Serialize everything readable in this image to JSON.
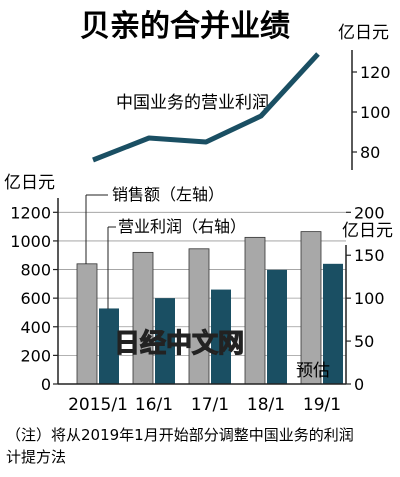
{
  "chart_data": [
    {
      "type": "line",
      "title": "贝亲的合并业绩",
      "series_label": "中国业务的营业利润",
      "y_unit": "亿日元",
      "y_ticks": [
        80,
        100,
        120
      ],
      "ylim": [
        70,
        132
      ],
      "color": "#1a4f63",
      "points": [
        {
          "x": "2015/1",
          "y": 76
        },
        {
          "x": "16/1",
          "y": 87
        },
        {
          "x": "17/1",
          "y": 85
        },
        {
          "x": "18/1",
          "y": 98
        },
        {
          "x": "19/1",
          "y": 129
        }
      ]
    },
    {
      "type": "bar",
      "categories": [
        "2015/1",
        "16/1",
        "17/1",
        "18/1",
        "19/1"
      ],
      "left_axis": {
        "unit": "亿日元",
        "ticks": [
          0,
          200,
          400,
          600,
          800,
          1000,
          1200
        ],
        "ylim": [
          0,
          1300
        ]
      },
      "right_axis": {
        "unit": "亿日元",
        "ticks": [
          0,
          50,
          100,
          150,
          200
        ],
        "ylim": [
          0,
          216.67
        ]
      },
      "series": [
        {
          "name": "销售额（左轴）",
          "axis": "left",
          "color": "#a8a8a8",
          "values": [
            840,
            920,
            945,
            1025,
            1065
          ]
        },
        {
          "name": "营业利润（右轴）",
          "axis": "right",
          "color": "#1a4f63",
          "values": [
            88,
            100,
            110,
            133,
            140
          ]
        }
      ],
      "annotation": "预估",
      "watermark": "日经中文网"
    }
  ],
  "footnote": {
    "line1": "（注）将从2019年1月开始部分调整中国业务的利润",
    "line2": "计提方法"
  }
}
